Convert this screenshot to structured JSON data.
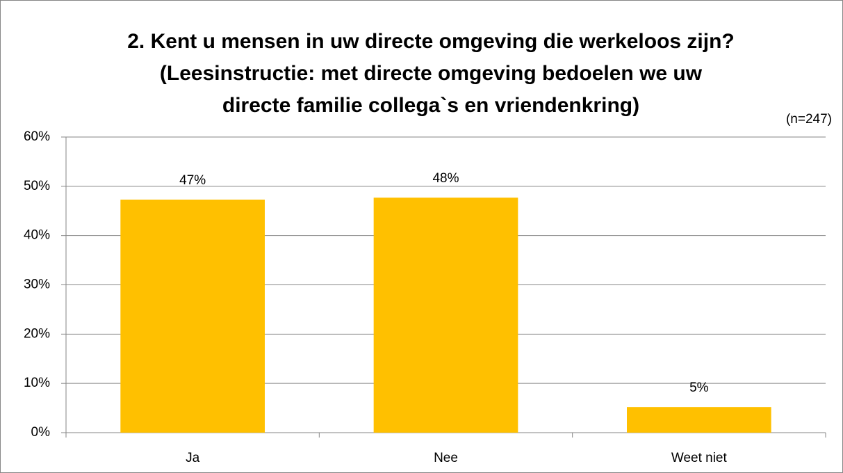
{
  "chart_data": {
    "type": "bar",
    "title": [
      "2. Kent u mensen in uw directe omgeving die werkeloos zijn?",
      "(Leesinstructie: met directe omgeving bedoelen we uw",
      "directe familie  collega`s en vriendenkring)"
    ],
    "annotation": "(n=247)",
    "categories": [
      "Ja",
      "Nee",
      "Weet niet"
    ],
    "values": [
      47.3,
      47.7,
      5.2
    ],
    "value_labels": [
      "47%",
      "48%",
      "5%"
    ],
    "color": "#ffc000",
    "ylim": [
      0,
      60
    ],
    "yticks": [
      {
        "value": 0,
        "label": "0%"
      },
      {
        "value": 10,
        "label": "10%"
      },
      {
        "value": 20,
        "label": "20%"
      },
      {
        "value": 30,
        "label": "30%"
      },
      {
        "value": 40,
        "label": "40%"
      },
      {
        "value": 50,
        "label": "50%"
      },
      {
        "value": 60,
        "label": "60%"
      }
    ],
    "grid": true
  }
}
